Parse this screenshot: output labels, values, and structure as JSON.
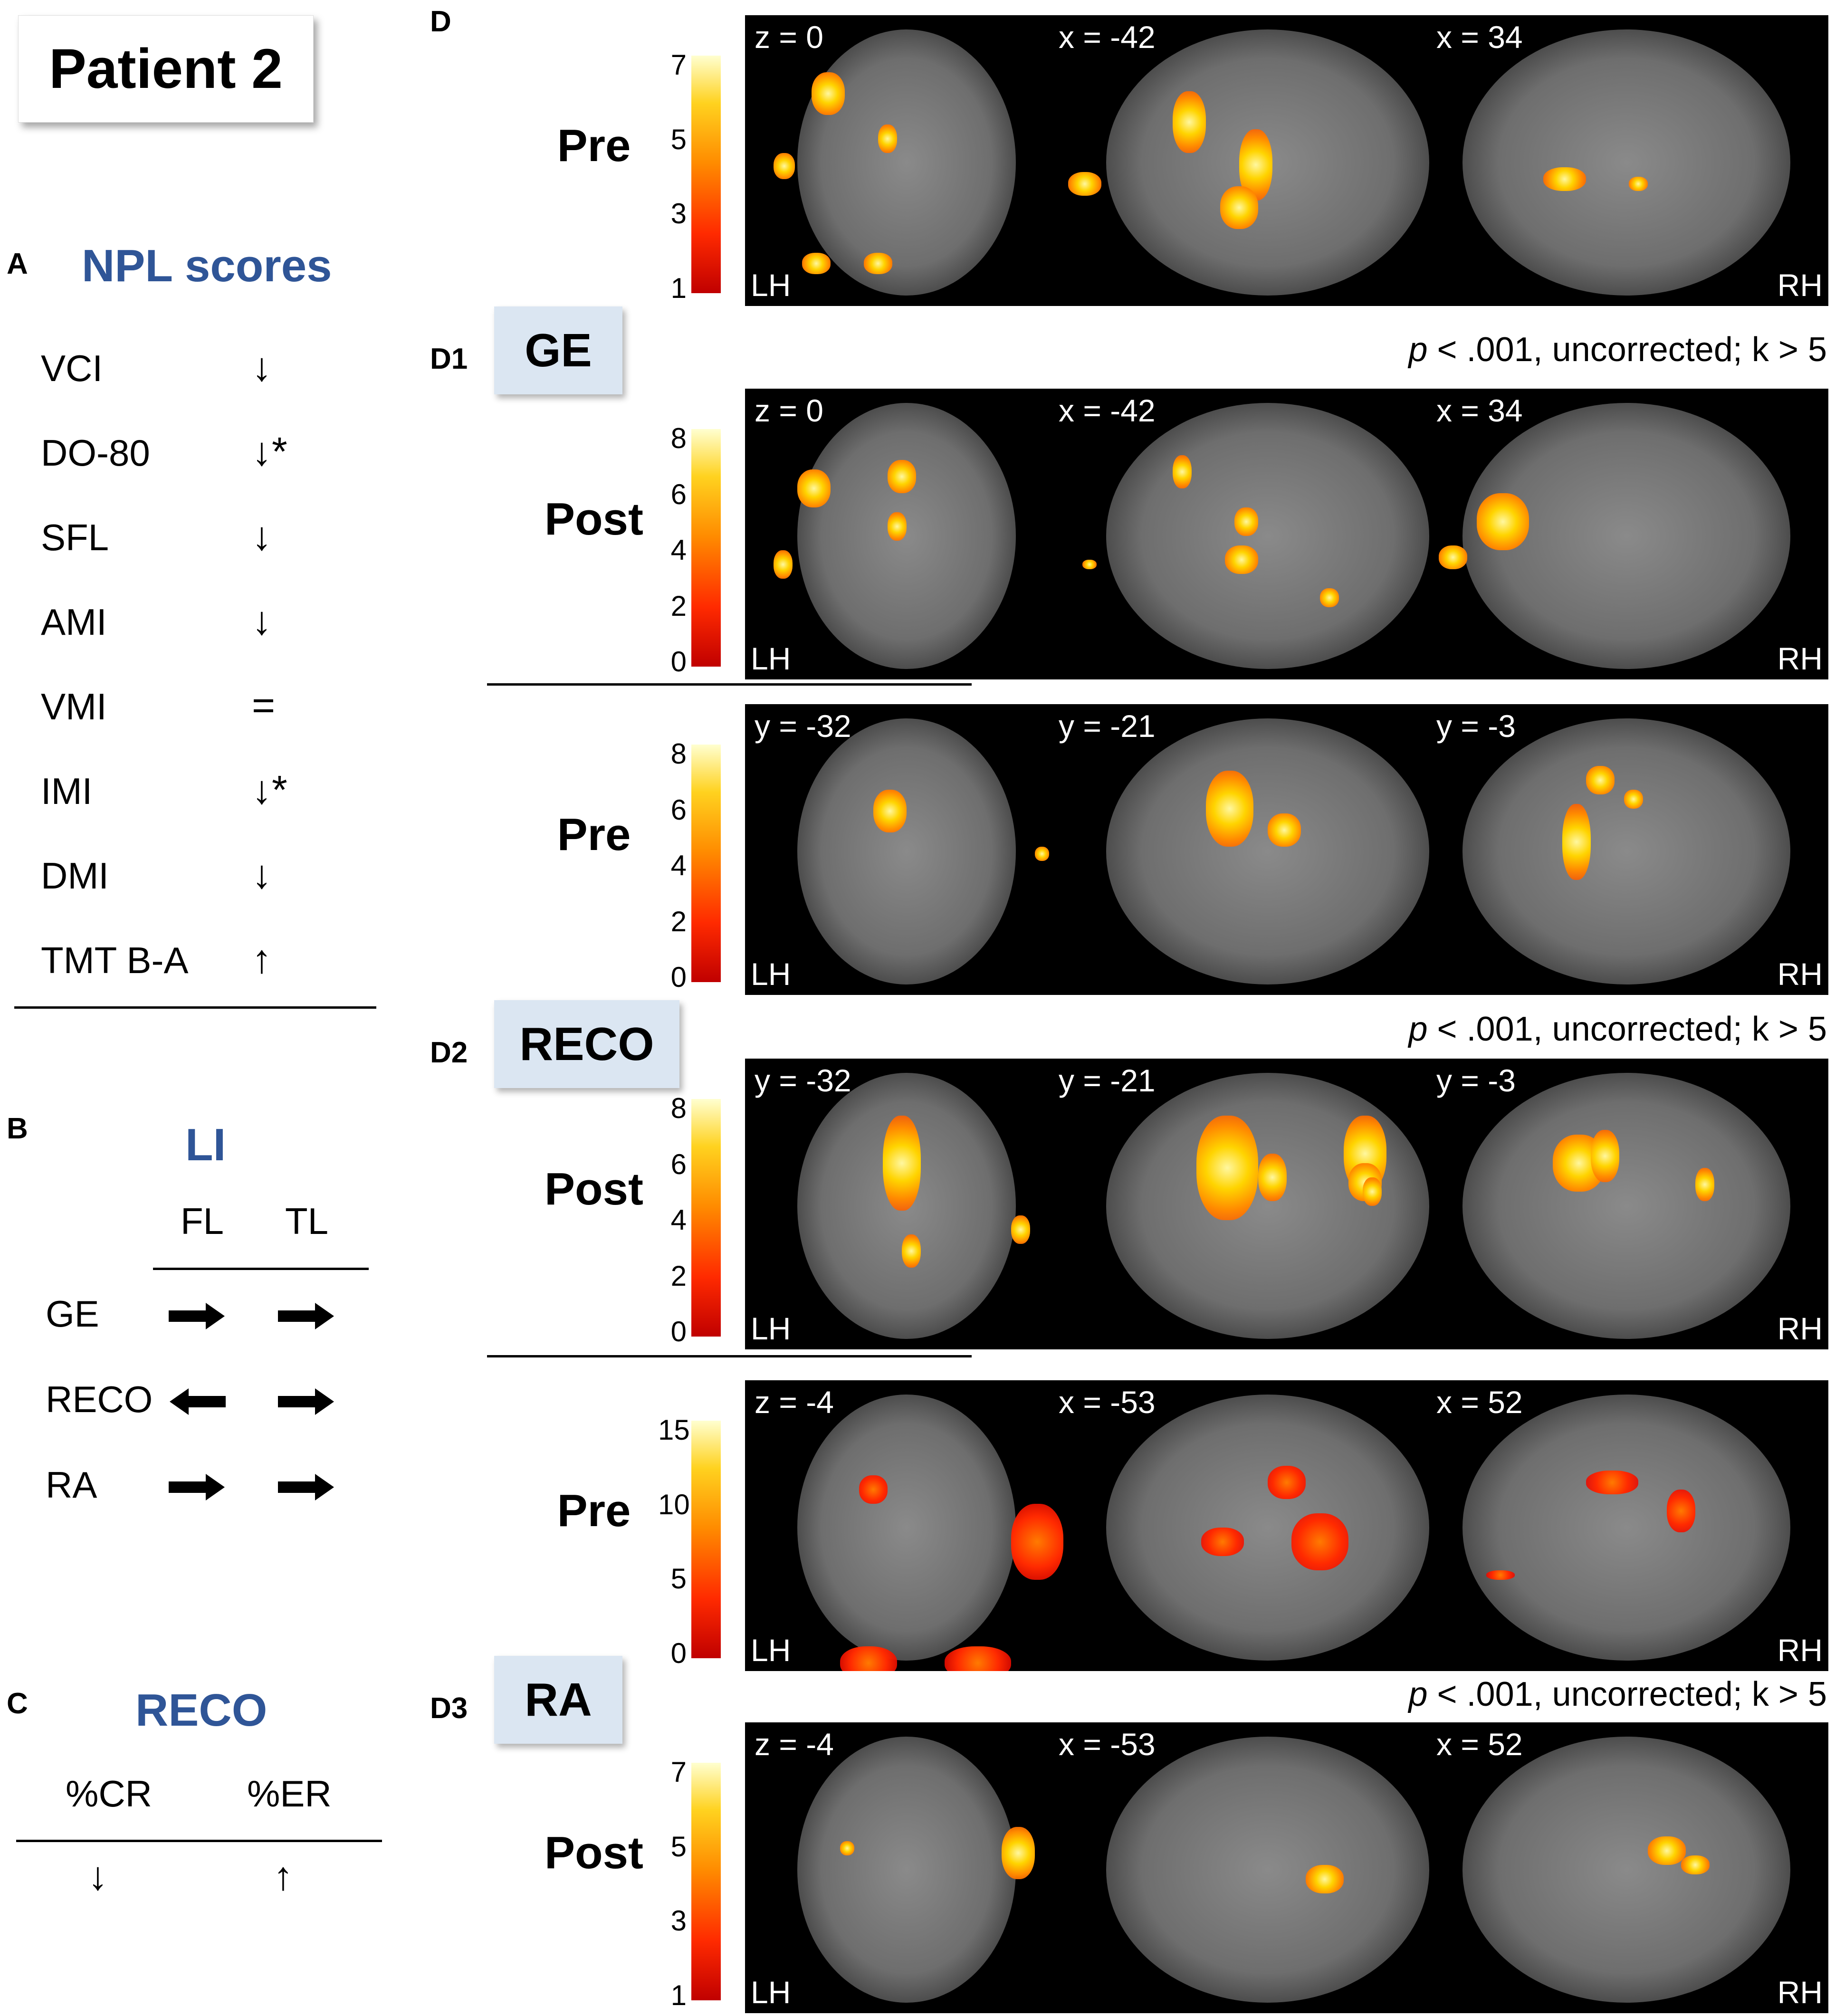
{
  "title": "Patient 2",
  "panelA": {
    "letter": "A",
    "heading": "NPL scores",
    "rows": [
      {
        "label": "VCI",
        "sym": "↓"
      },
      {
        "label": "DO-80",
        "sym": "↓*"
      },
      {
        "label": "SFL",
        "sym": "↓"
      },
      {
        "label": "AMI",
        "sym": "↓"
      },
      {
        "label": "VMI",
        "sym": "="
      },
      {
        "label": "IMI",
        "sym": "↓*"
      },
      {
        "label": "DMI",
        "sym": "↓"
      },
      {
        "label": "TMT B-A",
        "sym": "↑"
      }
    ]
  },
  "panelB": {
    "letter": "B",
    "heading": "LI",
    "col1": "FL",
    "col2": "TL",
    "rows": [
      {
        "label": "GE",
        "fl": "right",
        "tl": "right"
      },
      {
        "label": "RECO",
        "fl": "left",
        "tl": "right"
      },
      {
        "label": "RA",
        "fl": "right",
        "tl": "right"
      }
    ]
  },
  "panelC": {
    "letter": "C",
    "heading": "RECO",
    "col1": "%CR",
    "col2": "%ER",
    "val1": "↓",
    "val2": "↑"
  },
  "panelD": {
    "letter": "D",
    "hemi_left": "LH",
    "hemi_right": "RH",
    "pnote_italic": "p",
    "pnote_rest": " < .001, uncorrected; k > 5",
    "sections": [
      {
        "id": "D1",
        "badge": "GE",
        "pre": {
          "label": "Pre",
          "ticks": [
            "7",
            "5",
            "3",
            "1"
          ],
          "slices": [
            "z = 0",
            "x = -42",
            "x = 34"
          ]
        },
        "post": {
          "label": "Post",
          "ticks": [
            "8",
            "6",
            "4",
            "2",
            "0"
          ],
          "slices": [
            "z = 0",
            "x = -42",
            "x = 34"
          ]
        }
      },
      {
        "id": "D2",
        "badge": "RECO",
        "pre": {
          "label": "Pre",
          "ticks": [
            "8",
            "6",
            "4",
            "2",
            "0"
          ],
          "slices": [
            "y = -32",
            "y = -21",
            "y = -3"
          ]
        },
        "post": {
          "label": "Post",
          "ticks": [
            "8",
            "6",
            "4",
            "2",
            "0"
          ],
          "slices": [
            "y = -32",
            "y = -21",
            "y = -3"
          ]
        }
      },
      {
        "id": "D3",
        "badge": "RA",
        "pre": {
          "label": "Pre",
          "ticks": [
            "15",
            "10",
            "5",
            "0"
          ],
          "slices": [
            "z = -4",
            "x = -53",
            "x = 52"
          ]
        },
        "post": {
          "label": "Post",
          "ticks": [
            "7",
            "5",
            "3",
            "1"
          ],
          "slices": [
            "z = -4",
            "x = -53",
            "x = 52"
          ]
        }
      }
    ]
  }
}
